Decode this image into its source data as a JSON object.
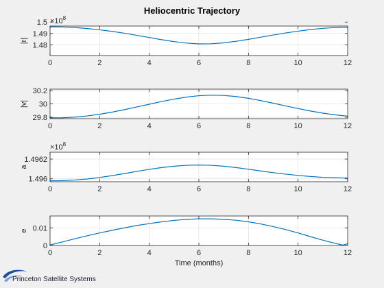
{
  "figure": {
    "title": "Heliocentric Trajectory",
    "logo_text": "Princeton Satellite Systems",
    "colors": {
      "line": "#0072bd",
      "axes": "#262626",
      "grid": "#e3e3e3",
      "background": "#f0f0f0",
      "plot_bg": "#ffffff"
    }
  },
  "chart_data": [
    {
      "type": "line",
      "ylabel": "|r|",
      "exponent": "×10",
      "exponent_power": "8",
      "xlim": [
        0,
        12
      ],
      "ylim": [
        1.4705,
        1.4965
      ],
      "xticks": [
        0,
        2,
        4,
        6,
        8,
        10,
        12
      ],
      "xtick_labels": [
        "0",
        "2",
        "4",
        "6",
        "8",
        "10",
        "12"
      ],
      "yticks": [
        1.48,
        1.49,
        1.5
      ],
      "ytick_labels": [
        "1.48",
        "1.49",
        "1.5"
      ],
      "grid": true,
      "series": [
        {
          "x": [
            0,
            0.5,
            1,
            1.5,
            2,
            2.5,
            3,
            3.5,
            4,
            4.5,
            5,
            5.5,
            6,
            6.5,
            7,
            7.5,
            8,
            8.5,
            9,
            9.5,
            10,
            10.5,
            11,
            11.5,
            12
          ],
          "values": [
            1.4958,
            1.4957,
            1.4952,
            1.4943,
            1.4932,
            1.4918,
            1.4902,
            1.4883,
            1.4864,
            1.4845,
            1.4828,
            1.4815,
            1.4808,
            1.4809,
            1.4817,
            1.4831,
            1.4848,
            1.4867,
            1.4886,
            1.4904,
            1.492,
            1.4934,
            1.4945,
            1.4952,
            1.4955
          ]
        }
      ]
    },
    {
      "type": "line",
      "ylabel": "|v|",
      "xlim": [
        0,
        12
      ],
      "ylim": [
        29.78,
        30.22
      ],
      "xticks": [
        0,
        2,
        4,
        6,
        8,
        10,
        12
      ],
      "xtick_labels": [
        "0",
        "2",
        "4",
        "6",
        "8",
        "10",
        "12"
      ],
      "yticks": [
        29.8,
        30,
        30.2
      ],
      "ytick_labels": [
        "29.8",
        "30",
        "30.2"
      ],
      "grid": true,
      "series": [
        {
          "x": [
            0,
            0.5,
            1,
            1.5,
            2,
            2.5,
            3,
            3.5,
            4,
            4.5,
            5,
            5.5,
            6,
            6.5,
            7,
            7.5,
            8,
            8.5,
            9,
            9.5,
            10,
            10.5,
            11,
            11.5,
            12
          ],
          "values": [
            29.792,
            29.793,
            29.803,
            29.82,
            29.845,
            29.877,
            29.914,
            29.955,
            29.995,
            30.035,
            30.071,
            30.101,
            30.122,
            30.13,
            30.126,
            30.11,
            30.083,
            30.049,
            30.01,
            29.97,
            29.93,
            29.894,
            29.862,
            29.836,
            29.818
          ]
        }
      ]
    },
    {
      "type": "line",
      "ylabel": "a",
      "exponent": "×10",
      "exponent_power": "8",
      "xlim": [
        0,
        12
      ],
      "ylim": [
        1.49597,
        1.49627
      ],
      "xticks": [
        0,
        2,
        4,
        6,
        8,
        10,
        12
      ],
      "xtick_labels": [
        "0",
        "2",
        "4",
        "6",
        "8",
        "10",
        "12"
      ],
      "yticks": [
        1.496,
        1.4962
      ],
      "ytick_labels": [
        "1.496",
        "1.4962"
      ],
      "grid": true,
      "series": [
        {
          "x": [
            0,
            0.5,
            1,
            1.5,
            2,
            2.5,
            3,
            3.5,
            4,
            4.5,
            5,
            5.5,
            6,
            6.5,
            7,
            7.5,
            8,
            8.5,
            9,
            9.5,
            10,
            10.5,
            11,
            11.5,
            12
          ],
          "values": [
            1.49598,
            1.495981,
            1.495987,
            1.495998,
            1.496013,
            1.496032,
            1.496053,
            1.496075,
            1.496096,
            1.496114,
            1.496128,
            1.496137,
            1.49614,
            1.496137,
            1.496128,
            1.496114,
            1.496097,
            1.496079,
            1.496062,
            1.496047,
            1.496034,
            1.496023,
            1.496015,
            1.49601,
            1.496007
          ]
        }
      ]
    },
    {
      "type": "line",
      "ylabel": "e",
      "xlabel": "Time (months)",
      "xlim": [
        0,
        12
      ],
      "ylim": [
        0,
        0.0167
      ],
      "xticks": [
        0,
        2,
        4,
        6,
        8,
        10,
        12
      ],
      "xtick_labels": [
        "0",
        "2",
        "4",
        "6",
        "8",
        "10",
        "12"
      ],
      "yticks": [
        0,
        0.01
      ],
      "ytick_labels": [
        "0",
        "0.01"
      ],
      "grid": true,
      "series": [
        {
          "x": [
            0,
            0.5,
            1,
            1.5,
            2,
            2.5,
            3,
            3.5,
            4,
            4.5,
            5,
            5.5,
            6,
            6.5,
            7,
            7.5,
            8,
            8.5,
            9,
            9.5,
            10,
            10.5,
            11,
            11.5,
            11.8,
            12
          ],
          "values": [
            0.0003,
            0.002,
            0.0038,
            0.0055,
            0.0071,
            0.0086,
            0.01,
            0.0113,
            0.0124,
            0.0134,
            0.0142,
            0.0148,
            0.0151,
            0.0151,
            0.0148,
            0.0143,
            0.0134,
            0.0122,
            0.0107,
            0.009,
            0.0071,
            0.005,
            0.003,
            0.0012,
            0.0002,
            0.001
          ]
        }
      ]
    }
  ]
}
